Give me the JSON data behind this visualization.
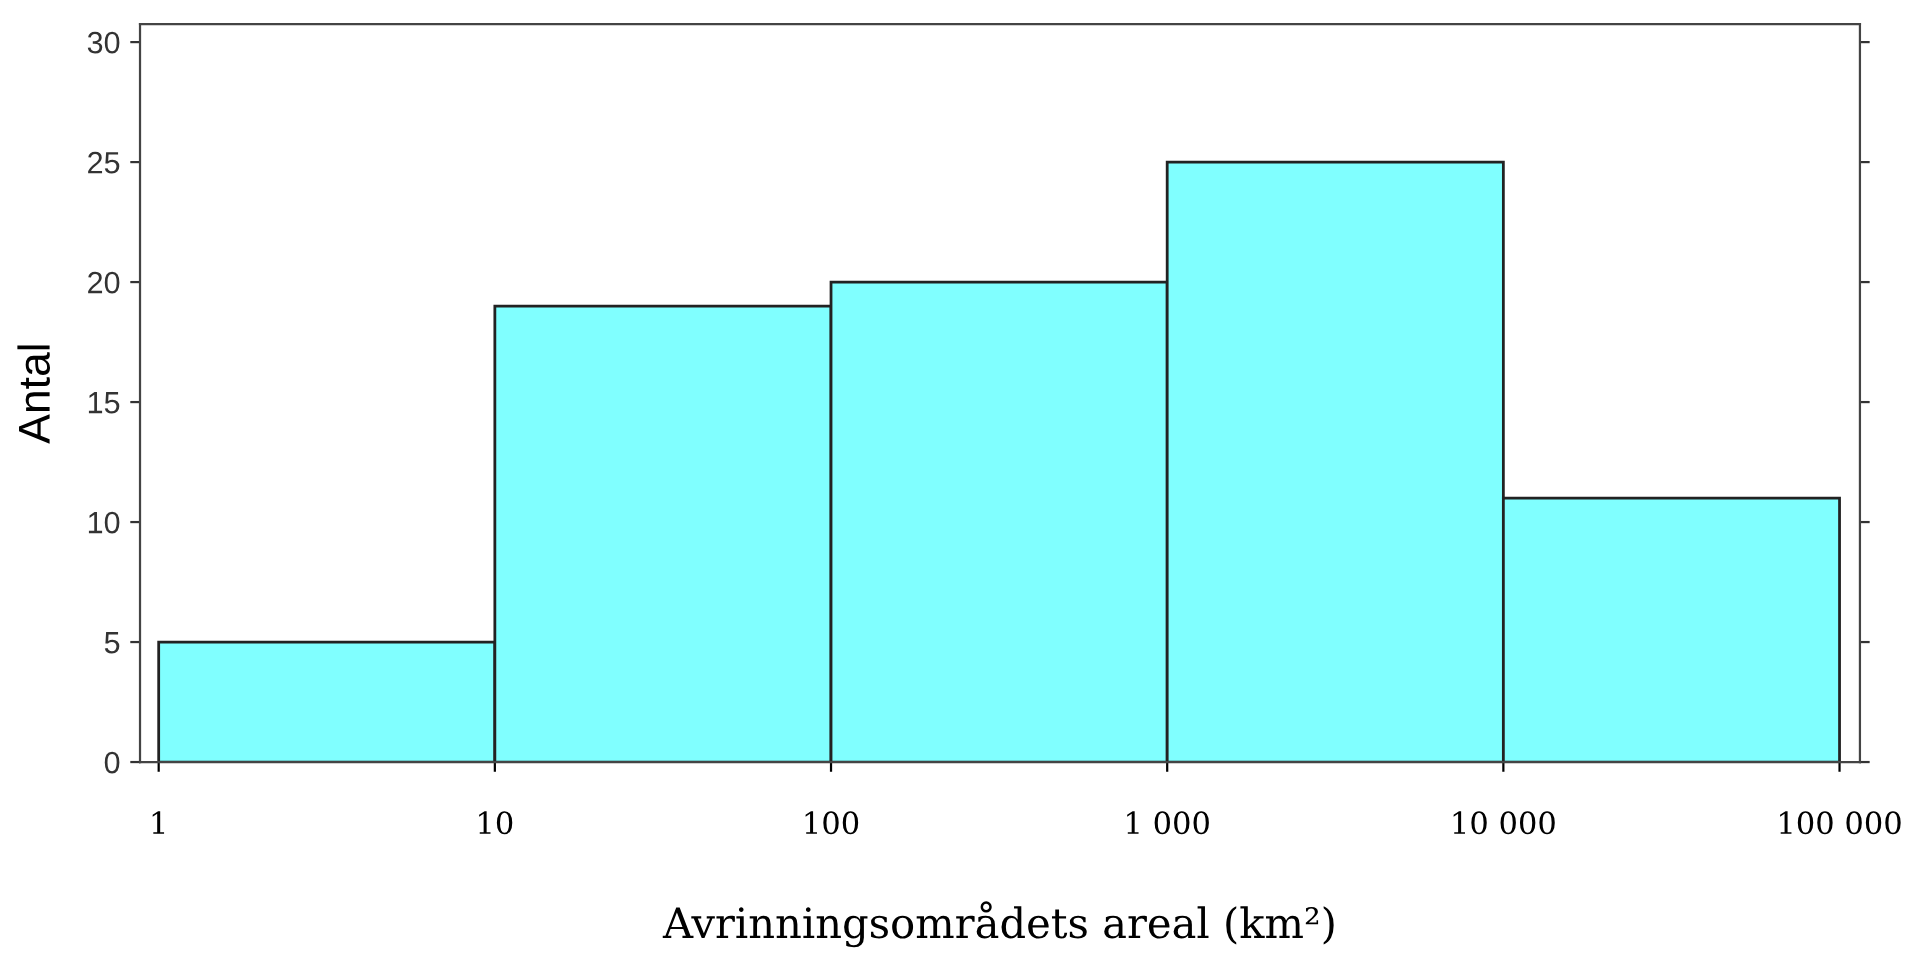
{
  "chart_data": {
    "type": "histogram",
    "xlabel": "Avrinningsområdets areal (km²)",
    "ylabel": "Antal",
    "bins": [
      1,
      10,
      100,
      1000,
      10000,
      100000
    ],
    "values": [
      5,
      19,
      20,
      25,
      11
    ],
    "color": "#80ffff",
    "log": "x",
    "xlim": [
      0.88,
      115000
    ],
    "xticks": [
      1,
      10,
      100,
      {
        "value": 1000,
        "label": "1 000"
      },
      {
        "value": 10000,
        "label": "10 000"
      },
      {
        "value": 100000,
        "label": "100 000"
      }
    ],
    "ylim": [
      0,
      30.75
    ],
    "yticks": [
      0,
      5,
      10,
      15,
      20,
      25,
      30
    ],
    "grid": false
  }
}
